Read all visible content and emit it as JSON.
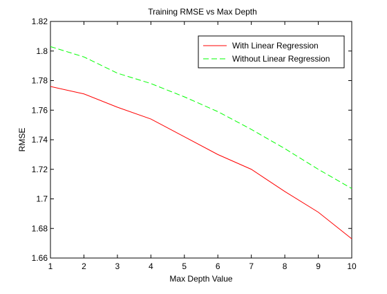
{
  "chart_data": {
    "type": "line",
    "title": "Training RMSE vs Max Depth",
    "xlabel": "Max Depth Value",
    "ylabel": "RMSE",
    "xlim": [
      1,
      10
    ],
    "ylim": [
      1.66,
      1.82
    ],
    "xticks": [
      "1",
      "2",
      "3",
      "4",
      "5",
      "6",
      "7",
      "8",
      "9",
      "10"
    ],
    "yticks": [
      "1.66",
      "1.68",
      "1.7",
      "1.72",
      "1.74",
      "1.76",
      "1.78",
      "1.8",
      "1.82"
    ],
    "grid": false,
    "legend_position": "top-right",
    "x": [
      1,
      2,
      3,
      4,
      5,
      6,
      7,
      8,
      9,
      10
    ],
    "series": [
      {
        "name": "With Linear Regression",
        "color": "#ff0000",
        "dash": "solid",
        "values": [
          1.776,
          1.771,
          1.762,
          1.754,
          1.742,
          1.73,
          1.72,
          1.705,
          1.691,
          1.673
        ]
      },
      {
        "name": "Without Linear Regression",
        "color": "#00ff00",
        "dash": "dashed",
        "values": [
          1.803,
          1.796,
          1.785,
          1.778,
          1.769,
          1.759,
          1.747,
          1.734,
          1.72,
          1.707
        ]
      }
    ]
  }
}
